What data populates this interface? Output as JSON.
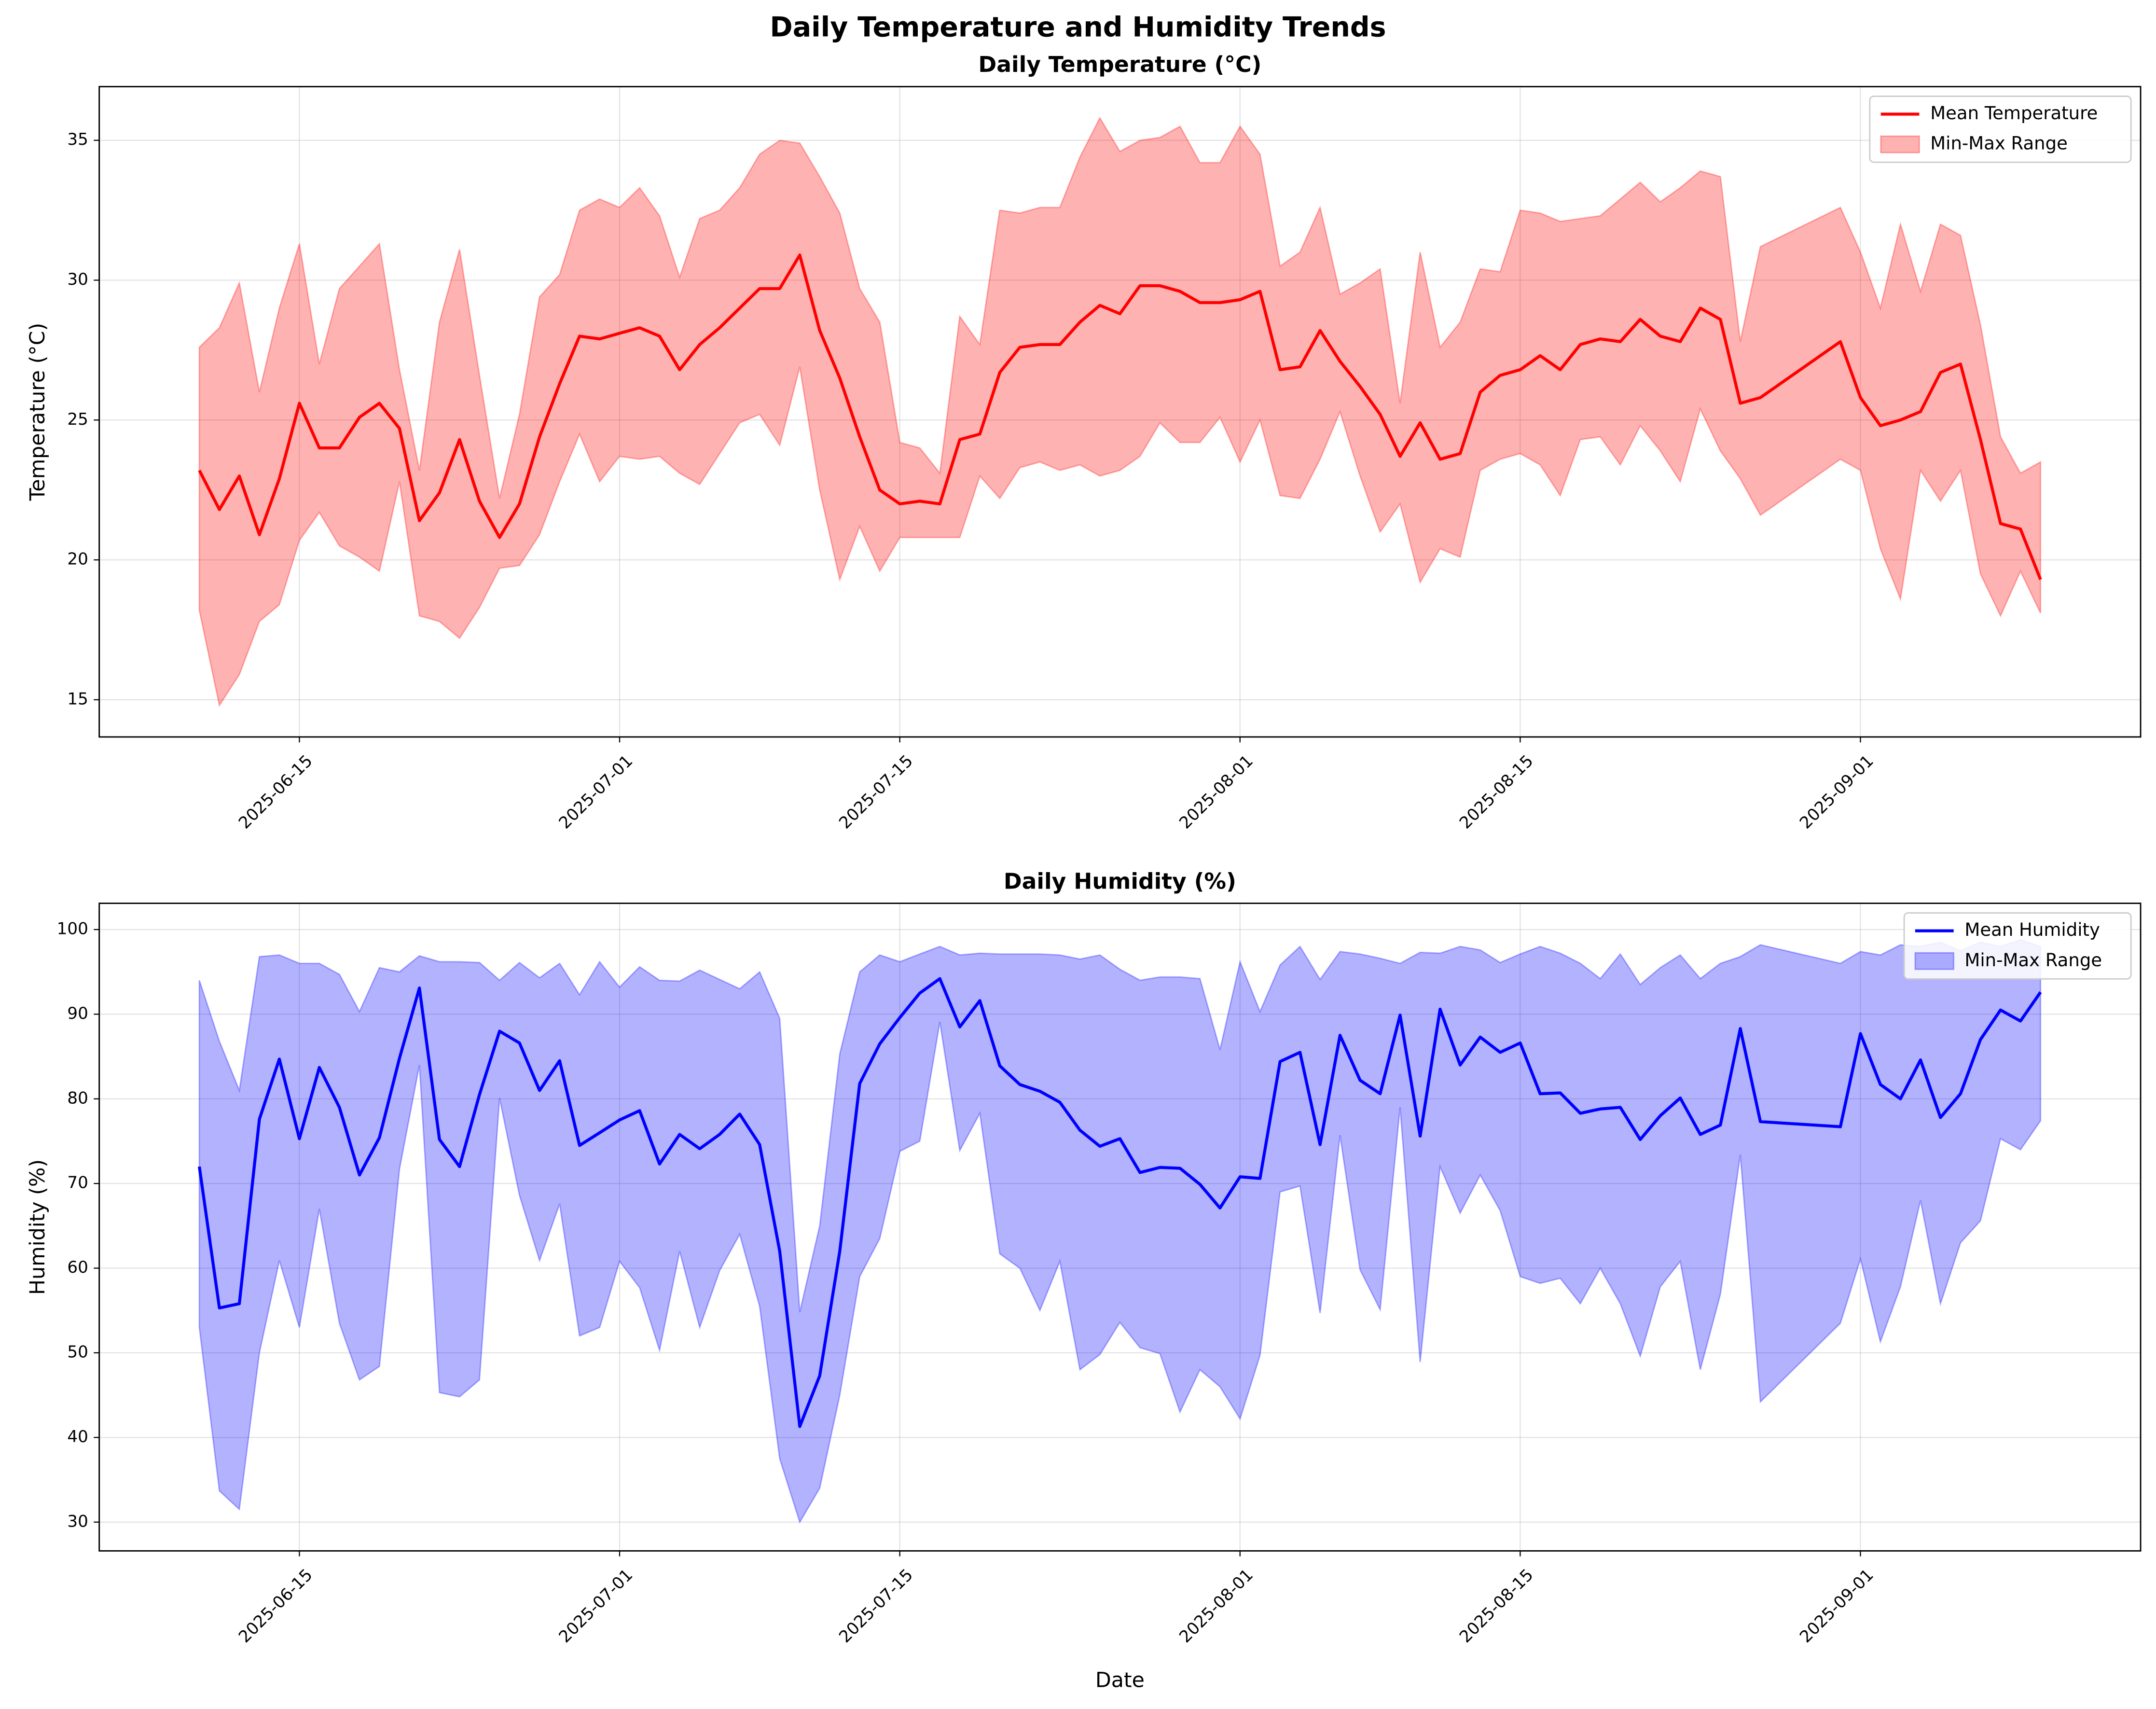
{
  "title": "Daily Temperature and Humidity Trends",
  "chart_data": [
    {
      "type": "line",
      "title": "Daily Temperature (°C)",
      "ylabel": "Temperature (°C)",
      "x": [
        "2025-06-10",
        "2025-06-11",
        "2025-06-12",
        "2025-06-13",
        "2025-06-14",
        "2025-06-15",
        "2025-06-16",
        "2025-06-17",
        "2025-06-18",
        "2025-06-19",
        "2025-06-20",
        "2025-06-21",
        "2025-06-22",
        "2025-06-23",
        "2025-06-24",
        "2025-06-25",
        "2025-06-26",
        "2025-06-27",
        "2025-06-28",
        "2025-06-29",
        "2025-06-30",
        "2025-07-01",
        "2025-07-02",
        "2025-07-03",
        "2025-07-04",
        "2025-07-05",
        "2025-07-06",
        "2025-07-07",
        "2025-07-08",
        "2025-07-09",
        "2025-07-10",
        "2025-07-11",
        "2025-07-12",
        "2025-07-13",
        "2025-07-14",
        "2025-07-15",
        "2025-07-16",
        "2025-07-17",
        "2025-07-18",
        "2025-07-19",
        "2025-07-20",
        "2025-07-21",
        "2025-07-22",
        "2025-07-23",
        "2025-07-24",
        "2025-07-25",
        "2025-07-26",
        "2025-07-27",
        "2025-07-28",
        "2025-07-29",
        "2025-07-30",
        "2025-07-31",
        "2025-08-01",
        "2025-08-02",
        "2025-08-03",
        "2025-08-04",
        "2025-08-05",
        "2025-08-06",
        "2025-08-07",
        "2025-08-08",
        "2025-08-09",
        "2025-08-10",
        "2025-08-11",
        "2025-08-12",
        "2025-08-13",
        "2025-08-14",
        "2025-08-15",
        "2025-08-16",
        "2025-08-17",
        "2025-08-18",
        "2025-08-19",
        "2025-08-20",
        "2025-08-21",
        "2025-08-22",
        "2025-08-23",
        "2025-08-24",
        "2025-08-25",
        "2025-08-26",
        "2025-08-27",
        "2025-08-31",
        "2025-09-01",
        "2025-09-02",
        "2025-09-03",
        "2025-09-04",
        "2025-09-05",
        "2025-09-06",
        "2025-09-07",
        "2025-09-08",
        "2025-09-09",
        "2025-09-10"
      ],
      "series": [
        {
          "name": "Mean Temperature",
          "color": "#ff0000",
          "values": [
            23.2,
            21.8,
            23.0,
            20.9,
            22.9,
            25.6,
            24.0,
            24.0,
            25.1,
            25.6,
            24.7,
            21.4,
            22.4,
            24.3,
            22.1,
            20.8,
            22.0,
            24.4,
            26.3,
            28.0,
            27.9,
            28.1,
            28.3,
            28.0,
            26.8,
            27.7,
            28.3,
            29.0,
            29.7,
            29.7,
            30.9,
            28.2,
            26.5,
            24.4,
            22.5,
            22.0,
            22.1,
            22.0,
            24.3,
            24.5,
            26.7,
            27.6,
            27.7,
            27.7,
            28.5,
            29.1,
            28.8,
            29.8,
            29.8,
            29.6,
            29.2,
            29.2,
            29.3,
            29.6,
            26.8,
            26.9,
            28.2,
            27.1,
            26.2,
            25.2,
            23.7,
            24.9,
            23.6,
            23.8,
            26.0,
            26.6,
            26.8,
            27.3,
            26.8,
            27.7,
            27.9,
            27.8,
            28.6,
            28.0,
            27.8,
            29.0,
            28.6,
            25.6,
            25.8,
            27.8,
            25.8,
            24.8,
            25.0,
            25.3,
            26.7,
            27.0,
            24.3,
            21.3,
            21.1,
            19.3
          ]
        },
        {
          "name": "Min-Max Range",
          "type": "band",
          "color": "#ff0000",
          "alpha": 0.3,
          "upper": [
            27.6,
            28.3,
            29.9,
            26.0,
            29.0,
            31.3,
            27.0,
            29.7,
            30.5,
            31.3,
            26.8,
            23.2,
            28.5,
            31.1,
            26.6,
            22.2,
            25.2,
            29.4,
            30.2,
            32.5,
            32.9,
            32.6,
            33.3,
            32.3,
            30.1,
            32.2,
            32.5,
            33.3,
            34.5,
            35.0,
            34.9,
            33.7,
            32.4,
            29.7,
            28.5,
            24.2,
            24.0,
            23.1,
            28.7,
            27.7,
            32.5,
            32.4,
            32.6,
            32.6,
            34.4,
            35.8,
            34.6,
            35.0,
            35.1,
            35.5,
            34.2,
            34.2,
            35.5,
            34.5,
            30.5,
            31.0,
            32.6,
            29.5,
            29.9,
            30.4,
            25.6,
            31.0,
            27.6,
            28.5,
            30.4,
            30.3,
            32.5,
            32.4,
            32.1,
            32.2,
            32.3,
            32.9,
            33.5,
            32.8,
            33.3,
            33.9,
            33.7,
            27.8,
            31.2,
            32.6,
            31.0,
            29.0,
            32.0,
            29.6,
            32.0,
            31.6,
            28.4,
            24.4,
            23.1,
            23.5
          ],
          "lower": [
            18.2,
            14.8,
            15.9,
            17.8,
            18.4,
            20.7,
            21.7,
            20.5,
            20.1,
            19.6,
            22.8,
            18.0,
            17.8,
            17.2,
            18.3,
            19.7,
            19.8,
            20.9,
            22.8,
            24.5,
            22.8,
            23.7,
            23.6,
            23.7,
            23.1,
            22.7,
            23.8,
            24.9,
            25.2,
            24.1,
            26.9,
            22.5,
            19.3,
            21.2,
            19.6,
            20.8,
            20.8,
            20.8,
            20.8,
            23.0,
            22.2,
            23.3,
            23.5,
            23.2,
            23.4,
            23.0,
            23.2,
            23.7,
            24.9,
            24.2,
            24.2,
            25.1,
            23.5,
            25.0,
            22.3,
            22.2,
            23.6,
            25.3,
            23.0,
            21.0,
            22.0,
            19.2,
            20.4,
            20.1,
            23.2,
            23.6,
            23.8,
            23.4,
            22.3,
            24.3,
            24.4,
            23.4,
            24.8,
            23.9,
            22.8,
            25.4,
            23.9,
            22.9,
            21.6,
            23.6,
            23.2,
            20.4,
            18.6,
            23.2,
            22.1,
            23.2,
            19.5,
            18.0,
            19.6,
            18.1
          ]
        }
      ],
      "xlim": [
        "2025-06-05",
        "2025-09-15"
      ],
      "xticks": [
        "2025-06-15",
        "2025-07-01",
        "2025-07-15",
        "2025-08-01",
        "2025-08-15",
        "2025-09-01"
      ],
      "ylim": [
        13.67,
        36.92
      ],
      "yticks": [
        15,
        20,
        25,
        30,
        35
      ],
      "grid": true,
      "legend": "upper right"
    },
    {
      "type": "line",
      "title": "Daily Humidity (%)",
      "ylabel": "Humidity (%)",
      "xlabel": "Date",
      "x": [
        "2025-06-10",
        "2025-06-11",
        "2025-06-12",
        "2025-06-13",
        "2025-06-14",
        "2025-06-15",
        "2025-06-16",
        "2025-06-17",
        "2025-06-18",
        "2025-06-19",
        "2025-06-20",
        "2025-06-21",
        "2025-06-22",
        "2025-06-23",
        "2025-06-24",
        "2025-06-25",
        "2025-06-26",
        "2025-06-27",
        "2025-06-28",
        "2025-06-29",
        "2025-06-30",
        "2025-07-01",
        "2025-07-02",
        "2025-07-03",
        "2025-07-04",
        "2025-07-05",
        "2025-07-06",
        "2025-07-07",
        "2025-07-08",
        "2025-07-09",
        "2025-07-10",
        "2025-07-11",
        "2025-07-12",
        "2025-07-13",
        "2025-07-14",
        "2025-07-15",
        "2025-07-16",
        "2025-07-17",
        "2025-07-18",
        "2025-07-19",
        "2025-07-20",
        "2025-07-21",
        "2025-07-22",
        "2025-07-23",
        "2025-07-24",
        "2025-07-25",
        "2025-07-26",
        "2025-07-27",
        "2025-07-28",
        "2025-07-29",
        "2025-07-30",
        "2025-07-31",
        "2025-08-01",
        "2025-08-02",
        "2025-08-03",
        "2025-08-04",
        "2025-08-05",
        "2025-08-06",
        "2025-08-07",
        "2025-08-08",
        "2025-08-09",
        "2025-08-10",
        "2025-08-11",
        "2025-08-12",
        "2025-08-13",
        "2025-08-14",
        "2025-08-15",
        "2025-08-16",
        "2025-08-17",
        "2025-08-18",
        "2025-08-19",
        "2025-08-20",
        "2025-08-21",
        "2025-08-22",
        "2025-08-23",
        "2025-08-24",
        "2025-08-25",
        "2025-08-26",
        "2025-08-27",
        "2025-08-31",
        "2025-09-01",
        "2025-09-02",
        "2025-09-03",
        "2025-09-04",
        "2025-09-05",
        "2025-09-06",
        "2025-09-07",
        "2025-09-08",
        "2025-09-09",
        "2025-09-10"
      ],
      "series": [
        {
          "name": "Mean Humidity",
          "color": "#0000ff",
          "values": [
            72.0,
            55.3,
            55.8,
            77.6,
            84.7,
            75.3,
            83.7,
            79.0,
            71.0,
            75.4,
            84.8,
            93.1,
            75.2,
            72.0,
            80.5,
            88.0,
            86.6,
            81.0,
            84.5,
            74.5,
            76.0,
            77.5,
            78.6,
            72.3,
            75.8,
            74.1,
            75.8,
            78.2,
            74.6,
            62.0,
            41.3,
            47.3,
            62.0,
            81.8,
            86.5,
            89.6,
            92.5,
            94.2,
            88.5,
            91.6,
            83.9,
            81.7,
            80.9,
            79.6,
            76.3,
            74.4,
            75.3,
            71.3,
            71.9,
            71.8,
            69.9,
            67.1,
            70.8,
            70.6,
            84.4,
            85.5,
            74.6,
            87.5,
            82.2,
            80.6,
            89.9,
            75.6,
            90.6,
            84.0,
            87.3,
            85.5,
            86.6,
            80.6,
            80.7,
            78.3,
            78.8,
            79.0,
            75.2,
            78.0,
            80.1,
            75.8,
            76.9,
            88.3,
            77.3,
            76.7,
            87.7,
            81.7,
            80.0,
            84.6,
            77.8,
            80.6,
            87.0,
            90.5,
            89.2,
            92.6
          ]
        },
        {
          "name": "Min-Max Range",
          "type": "band",
          "color": "#0000ff",
          "alpha": 0.3,
          "upper": [
            94.0,
            86.8,
            81.0,
            96.8,
            97.0,
            96.0,
            96.0,
            94.7,
            90.3,
            95.5,
            95.0,
            96.9,
            96.2,
            96.2,
            96.1,
            94.0,
            96.1,
            94.3,
            96.0,
            92.3,
            96.2,
            93.2,
            95.6,
            94.0,
            93.9,
            95.2,
            94.1,
            93.0,
            95.0,
            89.5,
            54.8,
            65.0,
            85.3,
            95.0,
            97.0,
            96.2,
            97.1,
            98.0,
            97.0,
            97.2,
            97.1,
            97.1,
            97.1,
            97.0,
            96.5,
            97.0,
            95.3,
            94.0,
            94.4,
            94.4,
            94.2,
            85.8,
            96.2,
            90.3,
            95.8,
            98.0,
            94.1,
            97.4,
            97.1,
            96.6,
            96.0,
            97.3,
            97.2,
            98.0,
            97.6,
            96.1,
            97.1,
            98.0,
            97.2,
            96.0,
            94.2,
            97.1,
            93.5,
            95.5,
            97.0,
            94.2,
            96.0,
            96.8,
            98.2,
            96.0,
            97.4,
            97.0,
            98.2,
            98.0,
            98.5,
            97.5,
            98.5,
            98.0,
            98.8,
            98.0
          ],
          "lower": [
            53.0,
            33.7,
            31.5,
            50.0,
            60.9,
            53.0,
            67.0,
            53.5,
            46.8,
            48.4,
            71.7,
            84.0,
            45.3,
            44.8,
            46.8,
            80.1,
            68.6,
            60.9,
            67.6,
            52.0,
            53.0,
            60.8,
            57.7,
            50.3,
            62.0,
            53.0,
            59.7,
            64.0,
            55.5,
            37.5,
            30.0,
            34.0,
            45.0,
            59.0,
            63.5,
            73.8,
            75.0,
            89.1,
            73.9,
            78.3,
            61.7,
            60.0,
            55.0,
            60.8,
            48.0,
            49.8,
            53.6,
            50.6,
            49.9,
            43.0,
            48.0,
            46.0,
            42.2,
            49.7,
            69.0,
            69.7,
            54.7,
            75.7,
            59.8,
            55.1,
            79.0,
            48.9,
            72.0,
            66.5,
            71.0,
            66.8,
            59.0,
            58.2,
            58.8,
            55.8,
            60.0,
            55.8,
            49.6,
            57.8,
            60.8,
            48.0,
            56.9,
            73.4,
            44.2,
            53.5,
            61.1,
            51.3,
            57.8,
            68.0,
            55.8,
            63.0,
            65.6,
            75.3,
            74.0,
            77.4
          ]
        }
      ],
      "xlim": [
        "2025-06-05",
        "2025-09-15"
      ],
      "xticks": [
        "2025-06-15",
        "2025-07-01",
        "2025-07-15",
        "2025-08-01",
        "2025-08-15",
        "2025-09-01"
      ],
      "ylim": [
        26.6,
        103.1
      ],
      "yticks": [
        30,
        40,
        50,
        60,
        70,
        80,
        90,
        100
      ],
      "grid": true,
      "legend": "upper right"
    }
  ]
}
